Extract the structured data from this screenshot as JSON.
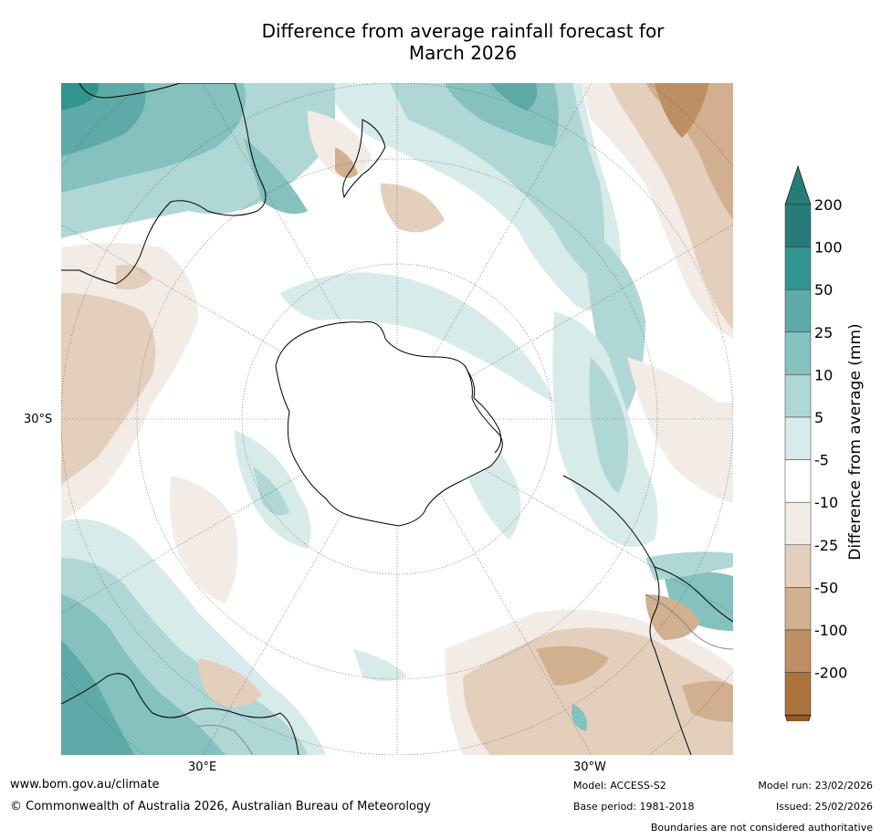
{
  "title_line1": "Difference from average rainfall forecast for",
  "title_line2": "March 2026",
  "axis_labels": {
    "lat_30s": "30°S",
    "lon_30e": "30°E",
    "lon_30w": "30°W"
  },
  "legend": {
    "title": "Difference from average (mm)",
    "bins": [
      {
        "label": "200",
        "color": "#267c79"
      },
      {
        "label": "100",
        "color": "#32948f"
      },
      {
        "label": "50",
        "color": "#5daaa8"
      },
      {
        "label": "25",
        "color": "#85c1be"
      },
      {
        "label": "10",
        "color": "#afd7d5"
      },
      {
        "label": "5",
        "color": "#d7ebea"
      },
      {
        "label": "-5",
        "color": "#ffffff"
      },
      {
        "label": "-10",
        "color": "#f3ece6"
      },
      {
        "label": "-25",
        "color": "#e4cfbd"
      },
      {
        "label": "-50",
        "color": "#d1b090"
      },
      {
        "label": "-100",
        "color": "#bd8f62"
      },
      {
        "label": "-200",
        "color": "#aa733b"
      }
    ],
    "arrow_top_color": "#267c79",
    "arrow_bottom_color": "#8e5a25"
  },
  "footer": {
    "website": "www.bom.gov.au/climate",
    "copyright": "© Commonwealth of Australia 2026, Australian Bureau of Meteorology",
    "model": "Model: ACCESS-S2",
    "base_period": "Base period: 1981-2018",
    "model_run": "Model run: 23/02/2026",
    "issued": "Issued: 25/02/2026",
    "disclaimer": "Boundaries are not considered authoritative"
  }
}
